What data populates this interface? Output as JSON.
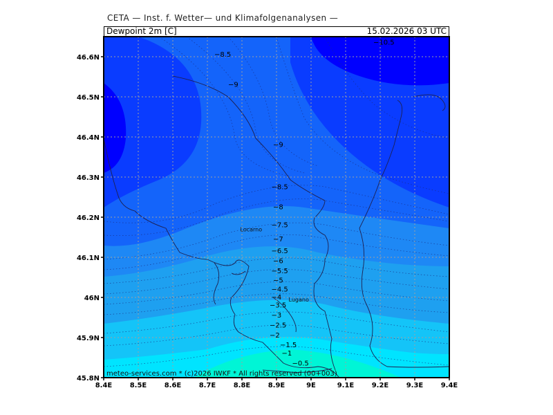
{
  "header": {
    "title": "CETA — Inst. f. Wetter— und Klimafolgenanalysen —",
    "variable": "Dewpoint 2m [C]",
    "datetime": "15.02.2026 03 UTC"
  },
  "footer": {
    "copyright": "meteo-services.com * (c)2026 IWKF * All rights reserved (00+003)"
  },
  "axes": {
    "x_ticks": [
      "8.4E",
      "8.5E",
      "8.6E",
      "8.7E",
      "8.8E",
      "8.9E",
      "9E",
      "9.1E",
      "9.2E",
      "9.3E",
      "9.4E"
    ],
    "y_ticks": [
      "46.6N",
      "46.5N",
      "46.4N",
      "46.3N",
      "46.2N",
      "46.1N",
      "46N",
      "45.9N",
      "45.8N"
    ],
    "x_values": [
      8.4,
      8.5,
      8.6,
      8.7,
      8.8,
      8.9,
      9.0,
      9.1,
      9.2,
      9.3,
      9.4
    ],
    "y_values": [
      46.6,
      46.5,
      46.4,
      46.3,
      46.2,
      46.1,
      46.0,
      45.9,
      45.8
    ],
    "xlim": [
      8.4,
      9.4
    ],
    "ylim": [
      45.8,
      46.65
    ],
    "grid": true
  },
  "cities": [
    {
      "name": "Locarno",
      "lon": 8.795,
      "lat": 46.165
    },
    {
      "name": "Lugano",
      "lon": 8.935,
      "lat": 45.99
    }
  ],
  "contour_labels": [
    {
      "text": "-10.5",
      "lon": 9.18,
      "lat": 46.63
    },
    {
      "text": "-8.5",
      "lon": 8.72,
      "lat": 46.6
    },
    {
      "text": "-9",
      "lon": 8.76,
      "lat": 46.525
    },
    {
      "text": "-9",
      "lon": 8.89,
      "lat": 46.375
    },
    {
      "text": "-8.5",
      "lon": 8.885,
      "lat": 46.27
    },
    {
      "text": "-8",
      "lon": 8.89,
      "lat": 46.22
    },
    {
      "text": "-7.5",
      "lon": 8.885,
      "lat": 46.175
    },
    {
      "text": "-7",
      "lon": 8.89,
      "lat": 46.14
    },
    {
      "text": "-6.5",
      "lon": 8.885,
      "lat": 46.11
    },
    {
      "text": "-6",
      "lon": 8.89,
      "lat": 46.085
    },
    {
      "text": "-5.5",
      "lon": 8.885,
      "lat": 46.06
    },
    {
      "text": "-5",
      "lon": 8.89,
      "lat": 46.037
    },
    {
      "text": "-4.5",
      "lon": 8.885,
      "lat": 46.015
    },
    {
      "text": "-4",
      "lon": 8.885,
      "lat": 45.995
    },
    {
      "text": "-3.5",
      "lon": 8.88,
      "lat": 45.975
    },
    {
      "text": "-3",
      "lon": 8.885,
      "lat": 45.95
    },
    {
      "text": "-2.5",
      "lon": 8.88,
      "lat": 45.925
    },
    {
      "text": "-2",
      "lon": 8.88,
      "lat": 45.9
    },
    {
      "text": "-1.5",
      "lon": 8.91,
      "lat": 45.876
    },
    {
      "text": "-1",
      "lon": 8.915,
      "lat": 45.855
    },
    {
      "text": "-0.5",
      "lon": 8.945,
      "lat": 45.83
    }
  ],
  "colors": {
    "deep": "#0000ff",
    "blue1": "#0a3cff",
    "blue2": "#1464fa",
    "blue3": "#1e88f5",
    "blue4": "#1ea0f0",
    "cyan1": "#14c4f8",
    "cyan2": "#00e4ff",
    "teal": "#00f5d6",
    "grid": "#a0a0a0",
    "border": "#202060"
  }
}
